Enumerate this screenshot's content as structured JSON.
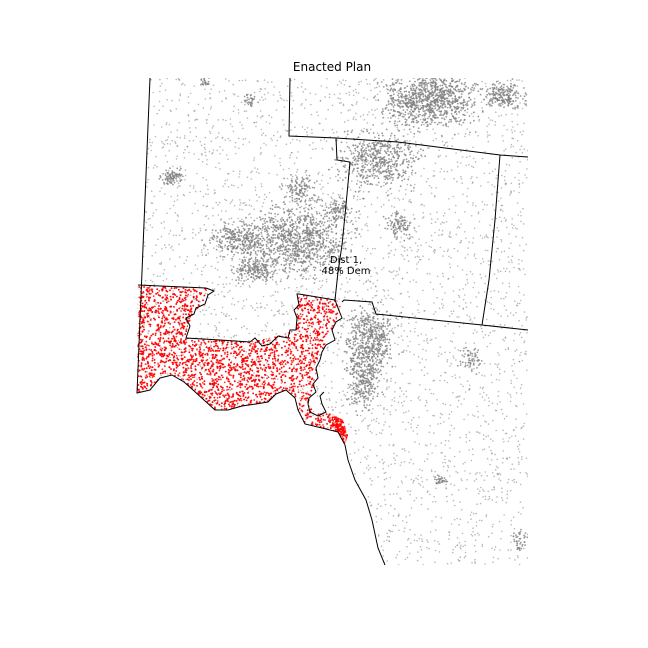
{
  "map": {
    "title": "Enacted Plan",
    "district_label": {
      "name": "Dist 1,",
      "detail": "48% Dem"
    },
    "colors": {
      "background_dots": "#808080",
      "district_dots": "#ff0000",
      "boundary": "#000000"
    }
  }
}
